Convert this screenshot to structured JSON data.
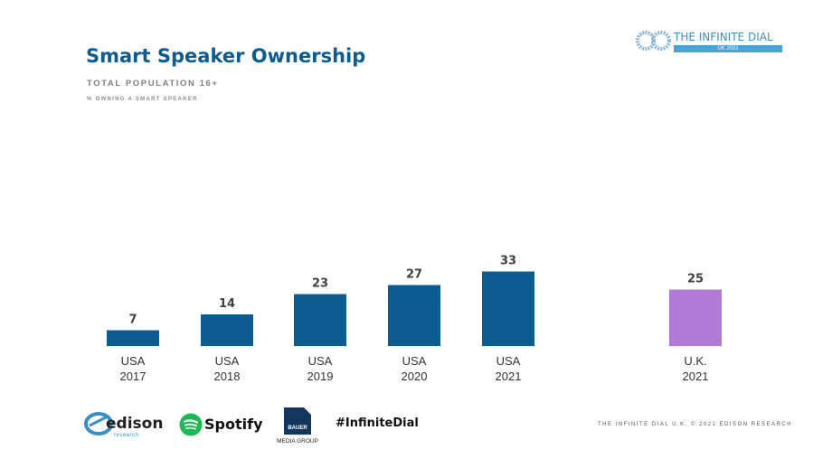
{
  "header": {
    "title": "Smart Speaker Ownership",
    "subtitle": "TOTAL POPULATION 16+",
    "subtitle2": "% OWNING A SMART SPEAKER"
  },
  "brand": {
    "name": "THE INFINITE DIAL",
    "badge": "UK 2021",
    "icon": "infinity-icon"
  },
  "chart_data": {
    "type": "bar",
    "title": "Smart Speaker Ownership",
    "xlabel": "",
    "ylabel": "% owning a smart speaker",
    "ylim": [
      0,
      40
    ],
    "grid": false,
    "categories": [
      {
        "line1": "USA",
        "line2": "2017"
      },
      {
        "line1": "USA",
        "line2": "2018"
      },
      {
        "line1": "USA",
        "line2": "2019"
      },
      {
        "line1": "USA",
        "line2": "2020"
      },
      {
        "line1": "USA",
        "line2": "2021"
      },
      {
        "line1": "U.K.",
        "line2": "2021"
      }
    ],
    "values": [
      7,
      14,
      23,
      27,
      33,
      25
    ],
    "colors": [
      "#0d5c91",
      "#0d5c91",
      "#0d5c91",
      "#0d5c91",
      "#0d5c91",
      "#b07ad6"
    ]
  },
  "footer": {
    "hashtag": "#InfiniteDial",
    "credit": "THE INFINITE DIAL U.K.  © 2021 EDISON RESEARCH",
    "logos": {
      "edison": {
        "word": "edison",
        "sub": "research"
      },
      "spotify": {
        "word": "Spotify"
      },
      "bauer": {
        "box": "BAUER",
        "word": "MEDIA GROUP"
      }
    }
  }
}
